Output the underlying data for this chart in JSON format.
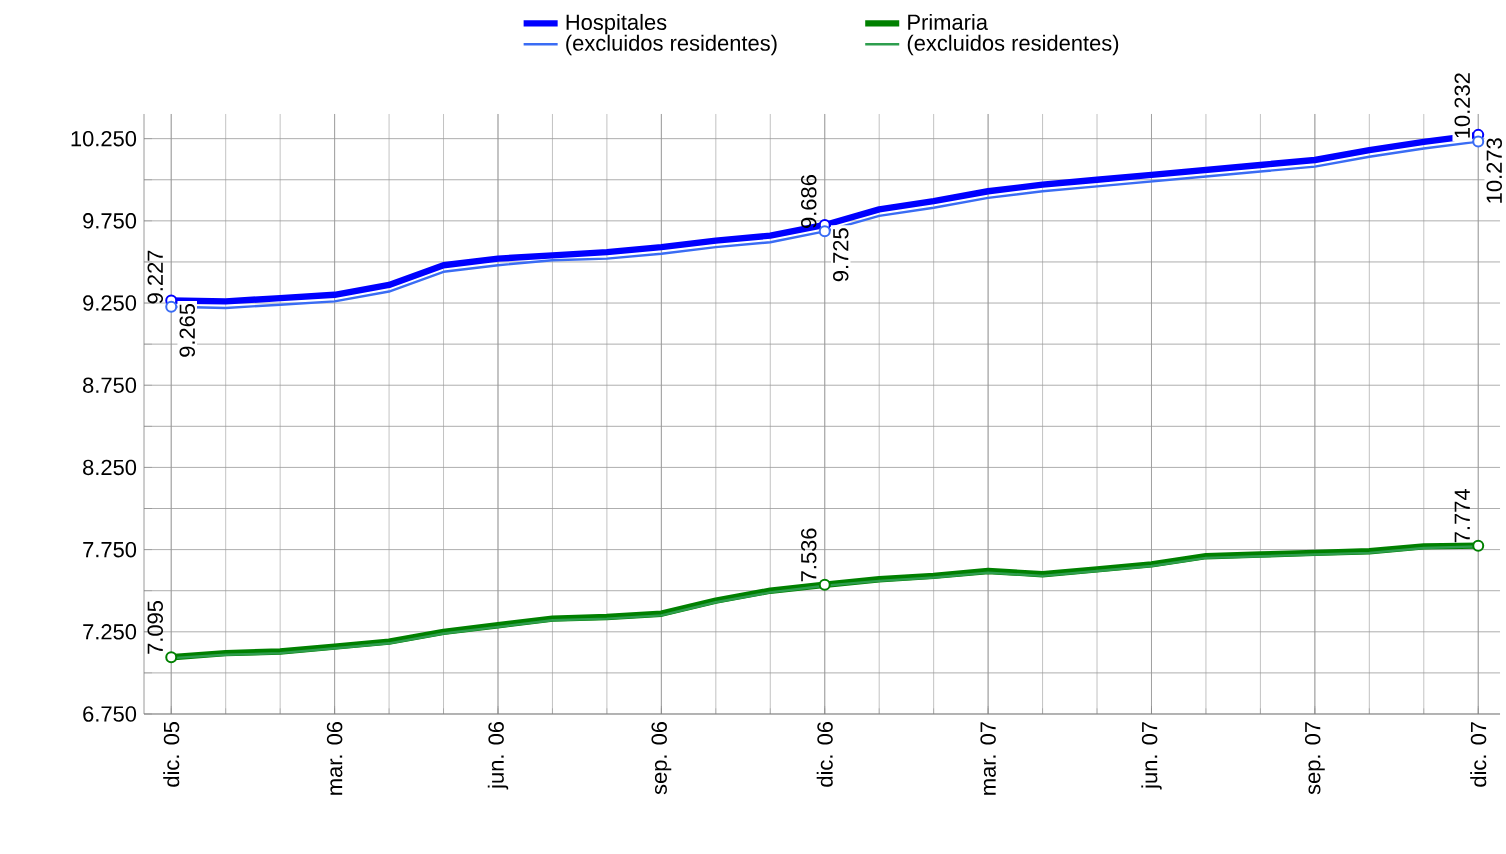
{
  "chart_data": {
    "type": "line",
    "categories": [
      "dic. 05",
      null,
      null,
      "mar. 06",
      null,
      null,
      "jun. 06",
      null,
      null,
      "sep. 06",
      null,
      null,
      "dic. 06",
      null,
      null,
      "mar. 07",
      null,
      null,
      "jun. 07",
      null,
      null,
      "sep. 07",
      null,
      null,
      "dic. 07"
    ],
    "series": [
      {
        "name": "Hospitales",
        "color": "#0000ff",
        "values": [
          9265,
          9260,
          9280,
          9300,
          9360,
          9480,
          9520,
          9540,
          9560,
          9590,
          9630,
          9660,
          9725,
          9820,
          9870,
          9930,
          9970,
          10000,
          10030,
          10060,
          10090,
          10120,
          10180,
          10230,
          10273
        ],
        "value_labels": [
          "9.265",
          null,
          null,
          null,
          null,
          null,
          null,
          null,
          null,
          null,
          null,
          null,
          "9.725",
          null,
          null,
          null,
          null,
          null,
          null,
          null,
          null,
          null,
          null,
          null,
          "10.273"
        ]
      },
      {
        "name": "(excluidos residentes)",
        "color": "#3a6cf4",
        "values": [
          9227,
          9220,
          9240,
          9260,
          9320,
          9440,
          9480,
          9510,
          9520,
          9550,
          9590,
          9620,
          9686,
          9780,
          9830,
          9890,
          9930,
          9960,
          9990,
          10020,
          10050,
          10080,
          10140,
          10190,
          10232
        ],
        "value_labels": [
          "9.227",
          null,
          null,
          null,
          null,
          null,
          null,
          null,
          null,
          null,
          null,
          null,
          "9.686",
          null,
          null,
          null,
          null,
          null,
          null,
          null,
          null,
          null,
          null,
          null,
          "10.232"
        ]
      },
      {
        "name": "Primaria",
        "color": "#008000",
        "values": [
          7095,
          7120,
          7130,
          7160,
          7190,
          7250,
          7290,
          7330,
          7340,
          7360,
          7440,
          7500,
          7536,
          7570,
          7590,
          7620,
          7600,
          7630,
          7660,
          7710,
          7720,
          7730,
          7740,
          7770,
          7774
        ],
        "value_labels": [
          "7.095",
          null,
          null,
          null,
          null,
          null,
          null,
          null,
          null,
          null,
          null,
          null,
          "7.536",
          null,
          null,
          null,
          null,
          null,
          null,
          null,
          null,
          null,
          null,
          null,
          "7.774"
        ]
      },
      {
        "name": "(excluidos residentes)",
        "color": "#2e9e4e",
        "values": [
          7090,
          7110,
          7120,
          7150,
          7180,
          7240,
          7280,
          7320,
          7330,
          7350,
          7430,
          7490,
          7530,
          7560,
          7580,
          7610,
          7590,
          7620,
          7650,
          7700,
          7710,
          7720,
          7730,
          7760,
          7770
        ]
      }
    ],
    "ylim": [
      6750,
      10400
    ],
    "yticks": [
      {
        "value": 6750,
        "label": "6.750"
      },
      {
        "value": 7000,
        "label": null
      },
      {
        "value": 7250,
        "label": "7.250"
      },
      {
        "value": 7500,
        "label": null
      },
      {
        "value": 7750,
        "label": "7.750"
      },
      {
        "value": 8000,
        "label": null
      },
      {
        "value": 8250,
        "label": "8.250"
      },
      {
        "value": 8500,
        "label": null
      },
      {
        "value": 8750,
        "label": "8.750"
      },
      {
        "value": 9000,
        "label": null
      },
      {
        "value": 9250,
        "label": "9.250"
      },
      {
        "value": 9500,
        "label": null
      },
      {
        "value": 9750,
        "label": "9.750"
      },
      {
        "value": 10000,
        "label": null
      },
      {
        "value": 10250,
        "label": "10.250"
      }
    ],
    "grid": true,
    "legend": "top"
  }
}
